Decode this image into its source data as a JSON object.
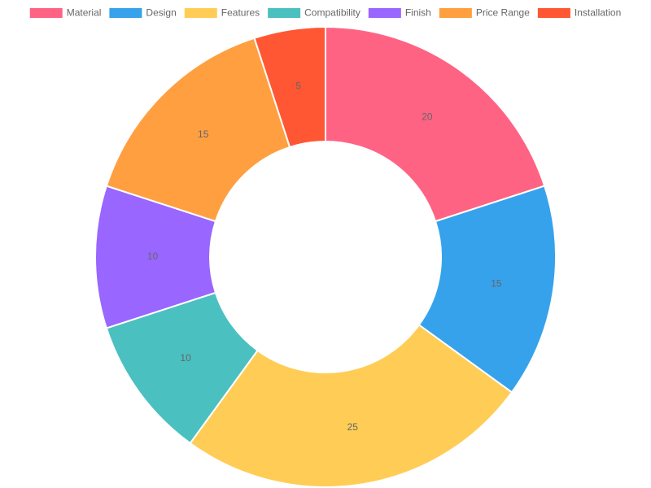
{
  "chart_data": {
    "type": "doughnut",
    "categories": [
      "Material",
      "Design",
      "Features",
      "Compatibility",
      "Finish",
      "Price Range",
      "Installation"
    ],
    "values": [
      20,
      15,
      25,
      10,
      10,
      15,
      5
    ],
    "colors": [
      "#ff6384",
      "#36a2eb",
      "#ffcd56",
      "#4bc0c0",
      "#9966ff",
      "#ff9f40",
      "#ff5733"
    ],
    "legend": "top"
  }
}
